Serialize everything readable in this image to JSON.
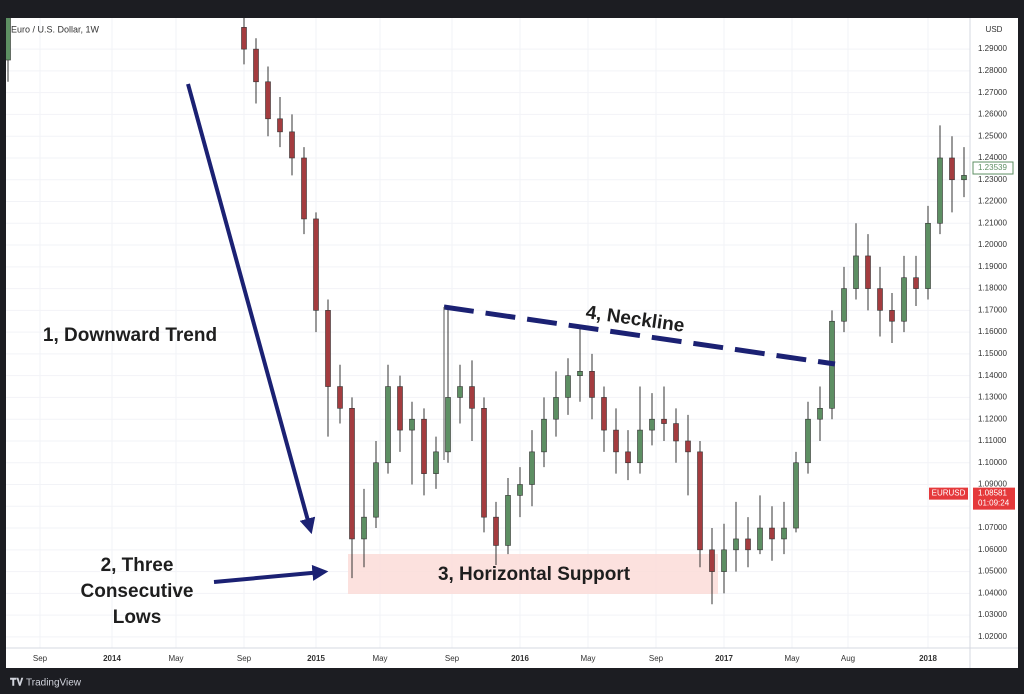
{
  "chart_data": {
    "type": "candlestick",
    "title": "Euro / U.S. Dollar, 1W",
    "currency": "USD",
    "brand": "TradingView",
    "up_color": "#5d8f63",
    "down_color": "#a43c3f",
    "grid": true,
    "x": [
      0,
      59,
      62,
      65,
      68,
      71,
      74,
      77,
      80,
      83,
      86,
      89,
      92,
      95,
      98,
      101,
      104,
      107,
      110,
      113,
      116,
      119,
      122,
      125,
      128,
      131,
      134,
      137,
      140,
      143,
      146,
      149,
      152,
      155,
      158,
      161,
      164,
      167,
      170,
      173,
      176,
      179,
      182,
      185,
      188,
      191,
      194,
      197,
      200,
      203,
      206,
      209,
      212,
      215,
      218,
      221,
      224,
      227,
      230,
      233,
      236,
      239
    ],
    "open": [
      1.285,
      1.3,
      1.29,
      1.275,
      1.258,
      1.252,
      1.24,
      1.212,
      1.17,
      1.135,
      1.125,
      1.065,
      1.075,
      1.1,
      1.135,
      1.115,
      1.12,
      1.095,
      1.105,
      1.13,
      1.135,
      1.125,
      1.075,
      1.062,
      1.085,
      1.09,
      1.105,
      1.12,
      1.13,
      1.14,
      1.142,
      1.13,
      1.115,
      1.105,
      1.1,
      1.115,
      1.12,
      1.118,
      1.11,
      1.105,
      1.06,
      1.05,
      1.06,
      1.065,
      1.06,
      1.07,
      1.065,
      1.07,
      1.1,
      1.12,
      1.125,
      1.165,
      1.18,
      1.195,
      1.18,
      1.17,
      1.165,
      1.185,
      1.18,
      1.21,
      1.24,
      1.23
    ],
    "high": [
      1.31,
      1.305,
      1.295,
      1.282,
      1.268,
      1.26,
      1.245,
      1.215,
      1.175,
      1.145,
      1.13,
      1.088,
      1.11,
      1.145,
      1.14,
      1.128,
      1.125,
      1.112,
      1.171,
      1.145,
      1.147,
      1.13,
      1.082,
      1.093,
      1.098,
      1.115,
      1.13,
      1.142,
      1.148,
      1.162,
      1.15,
      1.135,
      1.125,
      1.115,
      1.135,
      1.132,
      1.135,
      1.125,
      1.122,
      1.11,
      1.07,
      1.072,
      1.082,
      1.075,
      1.085,
      1.08,
      1.082,
      1.105,
      1.128,
      1.135,
      1.17,
      1.19,
      1.21,
      1.205,
      1.19,
      1.178,
      1.195,
      1.195,
      1.218,
      1.255,
      1.25,
      1.245
    ],
    "low": [
      1.275,
      1.283,
      1.265,
      1.25,
      1.245,
      1.232,
      1.205,
      1.16,
      1.112,
      1.118,
      1.047,
      1.052,
      1.07,
      1.095,
      1.105,
      1.09,
      1.085,
      1.088,
      1.1,
      1.118,
      1.11,
      1.068,
      1.053,
      1.058,
      1.075,
      1.08,
      1.098,
      1.112,
      1.122,
      1.128,
      1.12,
      1.105,
      1.095,
      1.092,
      1.095,
      1.108,
      1.11,
      1.1,
      1.085,
      1.052,
      1.035,
      1.04,
      1.05,
      1.052,
      1.058,
      1.055,
      1.058,
      1.068,
      1.095,
      1.11,
      1.12,
      1.16,
      1.175,
      1.17,
      1.158,
      1.155,
      1.16,
      1.172,
      1.175,
      1.205,
      1.215,
      1.222
    ],
    "close": [
      1.305,
      1.29,
      1.275,
      1.258,
      1.252,
      1.24,
      1.212,
      1.17,
      1.135,
      1.125,
      1.065,
      1.075,
      1.1,
      1.135,
      1.115,
      1.12,
      1.095,
      1.105,
      1.13,
      1.135,
      1.125,
      1.075,
      1.062,
      1.085,
      1.09,
      1.105,
      1.12,
      1.13,
      1.14,
      1.142,
      1.13,
      1.115,
      1.105,
      1.1,
      1.115,
      1.12,
      1.118,
      1.11,
      1.105,
      1.06,
      1.05,
      1.06,
      1.065,
      1.06,
      1.07,
      1.065,
      1.07,
      1.1,
      1.12,
      1.125,
      1.165,
      1.18,
      1.195,
      1.18,
      1.17,
      1.165,
      1.185,
      1.18,
      1.21,
      1.24,
      1.23,
      1.232
    ],
    "xlim": [
      -0.5,
      240.5
    ],
    "xticks": [
      {
        "value": 8,
        "label": "Sep"
      },
      {
        "value": 26,
        "label": "2014"
      },
      {
        "value": 42,
        "label": "May"
      },
      {
        "value": 59,
        "label": "Sep"
      },
      {
        "value": 77,
        "label": "2015"
      },
      {
        "value": 93,
        "label": "May"
      },
      {
        "value": 111,
        "label": "Sep"
      },
      {
        "value": 128,
        "label": "2016"
      },
      {
        "value": 145,
        "label": "May"
      },
      {
        "value": 162,
        "label": "Sep"
      },
      {
        "value": 179,
        "label": "2017"
      },
      {
        "value": 196,
        "label": "May"
      },
      {
        "value": 210,
        "label": "Aug"
      },
      {
        "value": 230,
        "label": "2018"
      }
    ],
    "ylim": [
      1.0149,
      1.3043
    ],
    "yticks": [
      {
        "value": 1.02,
        "label": "1.02000"
      },
      {
        "value": 1.03,
        "label": "1.03000"
      },
      {
        "value": 1.04,
        "label": "1.04000"
      },
      {
        "value": 1.05,
        "label": "1.05000"
      },
      {
        "value": 1.06,
        "label": "1.06000"
      },
      {
        "value": 1.07,
        "label": "1.07000"
      },
      {
        "value": 1.08,
        "label": "1.08000"
      },
      {
        "value": 1.09,
        "label": "1.09000"
      },
      {
        "value": 1.1,
        "label": "1.10000"
      },
      {
        "value": 1.11,
        "label": "1.11000"
      },
      {
        "value": 1.12,
        "label": "1.12000"
      },
      {
        "value": 1.13,
        "label": "1.13000"
      },
      {
        "value": 1.14,
        "label": "1.14000"
      },
      {
        "value": 1.15,
        "label": "1.15000"
      },
      {
        "value": 1.16,
        "label": "1.16000"
      },
      {
        "value": 1.17,
        "label": "1.17000"
      },
      {
        "value": 1.18,
        "label": "1.18000"
      },
      {
        "value": 1.19,
        "label": "1.19000"
      },
      {
        "value": 1.2,
        "label": "1.20000"
      },
      {
        "value": 1.21,
        "label": "1.21000"
      },
      {
        "value": 1.22,
        "label": "1.22000"
      },
      {
        "value": 1.23,
        "label": "1.23000"
      },
      {
        "value": 1.24,
        "label": "1.24000"
      },
      {
        "value": 1.25,
        "label": "1.25000"
      },
      {
        "value": 1.26,
        "label": "1.26000"
      },
      {
        "value": 1.27,
        "label": "1.27000"
      },
      {
        "value": 1.28,
        "label": "1.28000"
      },
      {
        "value": 1.29,
        "label": "1.29000"
      }
    ],
    "price_tag": {
      "value": 1.23539,
      "label": "1.23539"
    },
    "symbol_tag": {
      "symbol": "EURUSD",
      "value": 1.08581,
      "label": "1.08581",
      "countdown": "01:09:24"
    },
    "annotations": {
      "trend": "1, Downward Trend",
      "lows": [
        "2, Three",
        "Consecutive",
        "Lows"
      ],
      "support": "3, Horizontal Support",
      "neckline": "4, Neckline"
    }
  }
}
